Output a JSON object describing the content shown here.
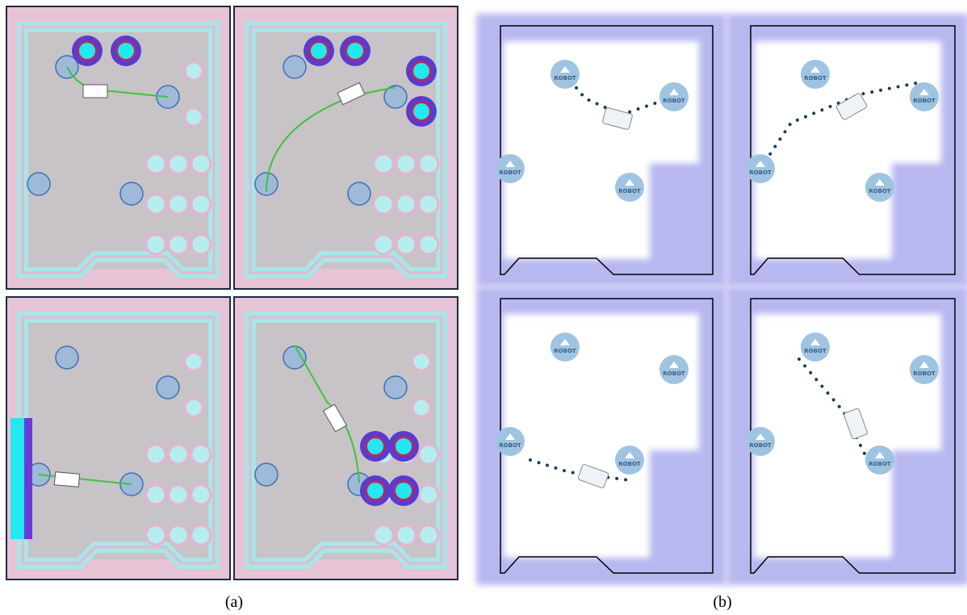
{
  "captions": {
    "a": "(a)",
    "b": "(b)"
  },
  "robot_label": "ROBOT"
}
